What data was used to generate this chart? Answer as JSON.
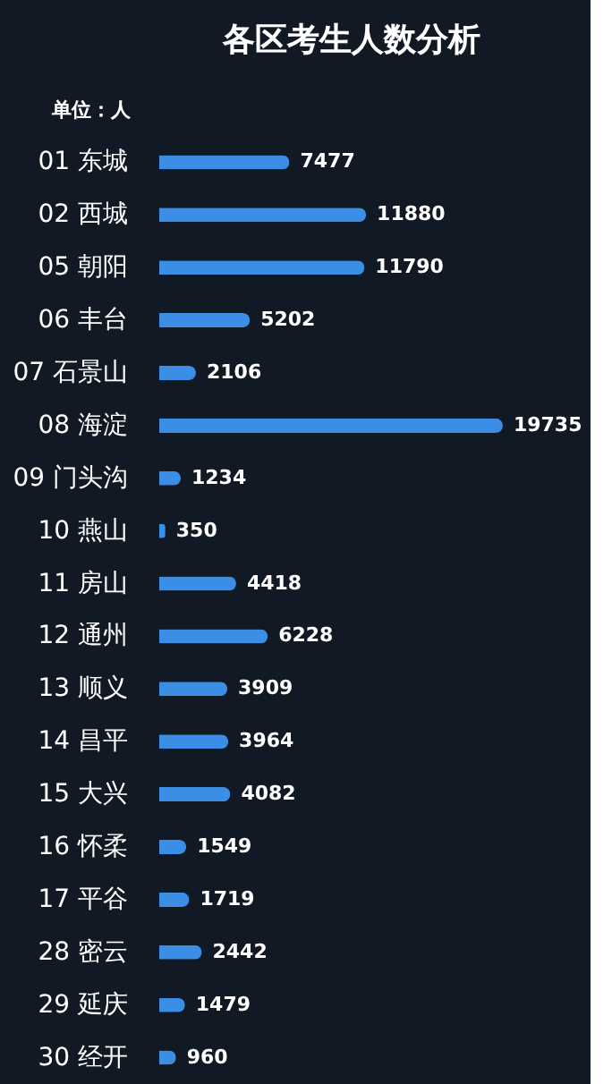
{
  "chart_data": {
    "type": "bar",
    "orientation": "horizontal",
    "title": "各区考生人数分析",
    "annotations": [
      "单位：人"
    ],
    "categories": [
      "01 东城",
      "02 西城",
      "05 朝阳",
      "06 丰台",
      "07 石景山",
      "08 海淀",
      "09 门头沟",
      "10 燕山",
      "11 房山",
      "12 通州",
      "13 顺义",
      "14 昌平",
      "15 大兴",
      "16 怀柔",
      "17 平谷",
      "28 密云",
      "29 延庆",
      "30 经开"
    ],
    "values": [
      7477,
      11880,
      11790,
      5202,
      2106,
      19735,
      1234,
      350,
      4418,
      6228,
      3909,
      3964,
      4082,
      1549,
      1719,
      2442,
      1479,
      960
    ],
    "color": "#3a8ee6",
    "data_labels": true
  }
}
